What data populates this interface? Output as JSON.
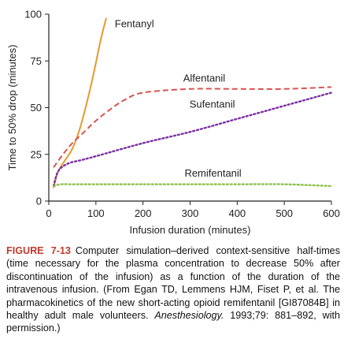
{
  "chart_data": {
    "type": "line",
    "title": "",
    "xlabel": "Infusion duration (minutes)",
    "ylabel": "Time to 50% drop (minutes)",
    "xlim": [
      0,
      600
    ],
    "ylim": [
      0,
      100
    ],
    "xticks": [
      0,
      100,
      200,
      300,
      400,
      500,
      600
    ],
    "yticks": [
      0,
      25,
      50,
      75,
      100
    ],
    "grid": false,
    "legend": "labels placed next to curves",
    "series": [
      {
        "name": "Fentanyl",
        "color": "#e69a2e",
        "style": "solid",
        "x": [
          10,
          20,
          35,
          50,
          65,
          80,
          95,
          110,
          122
        ],
        "y": [
          7,
          16,
          22,
          28,
          38,
          52,
          68,
          86,
          98
        ]
      },
      {
        "name": "Alfentanil",
        "color": "#d9534f",
        "style": "dashed",
        "x": [
          10,
          30,
          50,
          75,
          100,
          130,
          160,
          200,
          300,
          400,
          500,
          600
        ],
        "y": [
          18,
          25,
          31,
          37,
          43,
          49,
          54,
          58,
          60,
          60,
          60,
          61
        ]
      },
      {
        "name": "Sufentanil",
        "color": "#7b2fa3",
        "style": "dotted",
        "x": [
          10,
          20,
          40,
          70,
          100,
          200,
          300,
          400,
          500,
          600
        ],
        "y": [
          8,
          16,
          20,
          22,
          24,
          31,
          37,
          44,
          51,
          58
        ]
      },
      {
        "name": "Remifentanil",
        "color": "#8bc34a",
        "style": "dotted",
        "x": [
          10,
          25,
          50,
          100,
          200,
          300,
          400,
          500,
          600
        ],
        "y": [
          8,
          9,
          9,
          9,
          9,
          9,
          9,
          9,
          8
        ]
      }
    ]
  },
  "caption": {
    "label": "FIGURE 7-13",
    "text_a": "Computer simulation–derived context-sensitive half-times (time necessary for the plasma concentration to decrease 50% after discontinuation of the infusion) as a function of the duration of the intravenous infusion. (From Egan TD, Lemmens HJM, Fiset P, et al. The pharmacokinetics of the new short-acting opioid remifentanil [GI87084B] in healthy adult male volunteers.",
    "journal": "Anesthesiology.",
    "text_b": "1993;79: 881–892, with permission.)"
  }
}
